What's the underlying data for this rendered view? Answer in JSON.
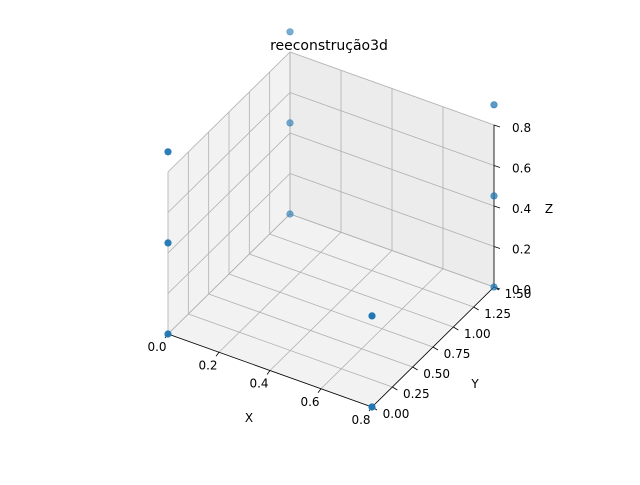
{
  "chart_data": {
    "type": "scatter",
    "title": "reeconstrução3d",
    "xlabel": "X",
    "ylabel": "Y",
    "zlabel": "Z",
    "xlim": [
      0.0,
      0.8
    ],
    "ylim": [
      0.0,
      1.5
    ],
    "zlim": [
      0.0,
      0.8
    ],
    "grid": true,
    "color": "#1f77b4",
    "x_ticks": [
      "0.0",
      "0.2",
      "0.4",
      "0.6",
      "0.8"
    ],
    "y_ticks": [
      "0.00",
      "0.25",
      "0.50",
      "0.75",
      "1.00",
      "1.25",
      "1.50"
    ],
    "z_ticks": [
      "0.0",
      "0.2",
      "0.4",
      "0.6",
      "0.8"
    ],
    "x_tick_values": [
      0.0,
      0.2,
      0.4,
      0.6,
      0.8
    ],
    "y_tick_values": [
      0.0,
      0.25,
      0.5,
      0.75,
      1.0,
      1.25,
      1.5
    ],
    "z_tick_values": [
      0.0,
      0.2,
      0.4,
      0.6,
      0.8
    ],
    "points": [
      {
        "x": 0.0,
        "y": 0.0,
        "z": 0.0
      },
      {
        "x": 0.0,
        "y": 0.0,
        "z": 0.45
      },
      {
        "x": 0.0,
        "y": 0.0,
        "z": 0.9
      },
      {
        "x": 0.0,
        "y": 1.5,
        "z": 0.0
      },
      {
        "x": 0.0,
        "y": 1.5,
        "z": 0.45
      },
      {
        "x": 0.0,
        "y": 1.5,
        "z": 0.9
      },
      {
        "x": 0.8,
        "y": 0.0,
        "z": 0.0
      },
      {
        "x": 0.8,
        "y": 0.0,
        "z": 0.45
      },
      {
        "x": 0.8,
        "y": 1.5,
        "z": 0.0
      },
      {
        "x": 0.8,
        "y": 1.5,
        "z": 0.45
      },
      {
        "x": 0.8,
        "y": 1.5,
        "z": 0.9
      }
    ]
  }
}
